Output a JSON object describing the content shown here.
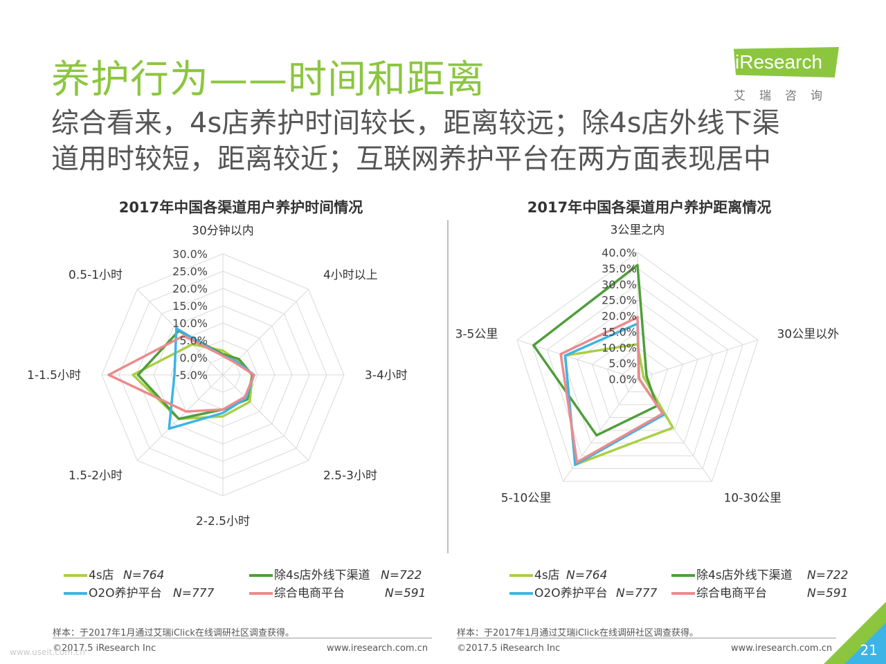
{
  "header": {
    "title": "养护行为——时间和距离",
    "subtitle_line1": "综合看来，4s店养护时间较长，距离较远；除4s店外线下渠",
    "subtitle_line2": "道用时较短，距离较近；互联网养护平台在两方面表现居中",
    "logo_text": "iResearch",
    "logo_sub": "艾瑞咨询"
  },
  "colors": {
    "4s": "#a9cf45",
    "offline": "#4f9e3a",
    "o2o": "#3cb4e6",
    "ecom": "#ec8a8c",
    "grid": "#d9d9d9",
    "title_green": "#8cc63f"
  },
  "chart_data": [
    {
      "type": "radar",
      "title": "2017年中国各渠道用户养护时间情况",
      "axes": [
        "30分钟以内",
        "4小时以上",
        "3-4小时",
        "2.5-3小时",
        "2-2.5小时",
        "1.5-2小时",
        "1-1.5小时",
        "0.5-1小时"
      ],
      "ticks": [
        "30.0%",
        "25.0%",
        "20.0%",
        "15.0%",
        "10.0%",
        "5.0%",
        "0.0%",
        "-5.0%"
      ],
      "range": [
        -5,
        30
      ],
      "series": [
        {
          "name": "4s店",
          "n": "N=764",
          "color_key": "4s",
          "values": [
            2.0,
            1.0,
            3.5,
            6.0,
            7.0,
            13.0,
            21.0,
            7.5
          ]
        },
        {
          "name": "除4s店外线下渠道",
          "n": "N=722",
          "color_key": "offline",
          "values": [
            1.0,
            1.5,
            3.5,
            5.0,
            5.0,
            13.0,
            19.5,
            13.0
          ]
        },
        {
          "name": "O2O养护平台",
          "n": "N=777",
          "color_key": "o2o",
          "values": [
            0.5,
            0.5,
            4.0,
            4.5,
            6.0,
            17.0,
            9.0,
            14.0
          ]
        },
        {
          "name": "综合电商平台",
          "n": "N=591",
          "color_key": "ecom",
          "values": [
            0.5,
            0.0,
            4.0,
            4.0,
            5.0,
            10.0,
            28.0,
            11.0
          ]
        }
      ]
    },
    {
      "type": "radar",
      "title": "2017年中国各渠道用户养护距离情况",
      "axes": [
        "3公里之内",
        "30公里以外",
        "10-30公里",
        "5-10公里",
        "3-5公里"
      ],
      "ticks": [
        "40.0%",
        "35.0%",
        "30.0%",
        "25.0%",
        "20.0%",
        "15.0%",
        "10.0%",
        "5.0%",
        "0.0%"
      ],
      "range": [
        0,
        40
      ],
      "series": [
        {
          "name": "4s店",
          "n": "N=764",
          "color_key": "4s",
          "values": [
            11.0,
            2.0,
            19.0,
            33.5,
            24.0
          ]
        },
        {
          "name": "除4s店外线下渠道",
          "n": "N=722",
          "color_key": "offline",
          "values": [
            36.0,
            3.0,
            10.5,
            22.0,
            34.5
          ]
        },
        {
          "name": "O2O养护平台",
          "n": "N=777",
          "color_key": "o2o",
          "values": [
            17.5,
            0.5,
            14.0,
            33.5,
            24.0
          ]
        },
        {
          "name": "综合电商平台",
          "n": "N=591",
          "color_key": "ecom",
          "values": [
            19.5,
            0.5,
            13.5,
            32.5,
            25.5
          ]
        }
      ]
    }
  ],
  "footer": {
    "note_left": "样本：于2017年1月通过艾瑞iClick在线调研社区调查获得。",
    "note_right": "样本：于2017年1月通过艾瑞iClick在线调研社区调查获得。",
    "copy_left": "©2017.5 iResearch Inc",
    "url_left": "www.iresearch.com.cn",
    "copy_right": "©2017.5 iResearch Inc",
    "url_right": "www.iresearch.com.cn",
    "page_number": "21",
    "watermark": "www.useit.com.cn"
  }
}
